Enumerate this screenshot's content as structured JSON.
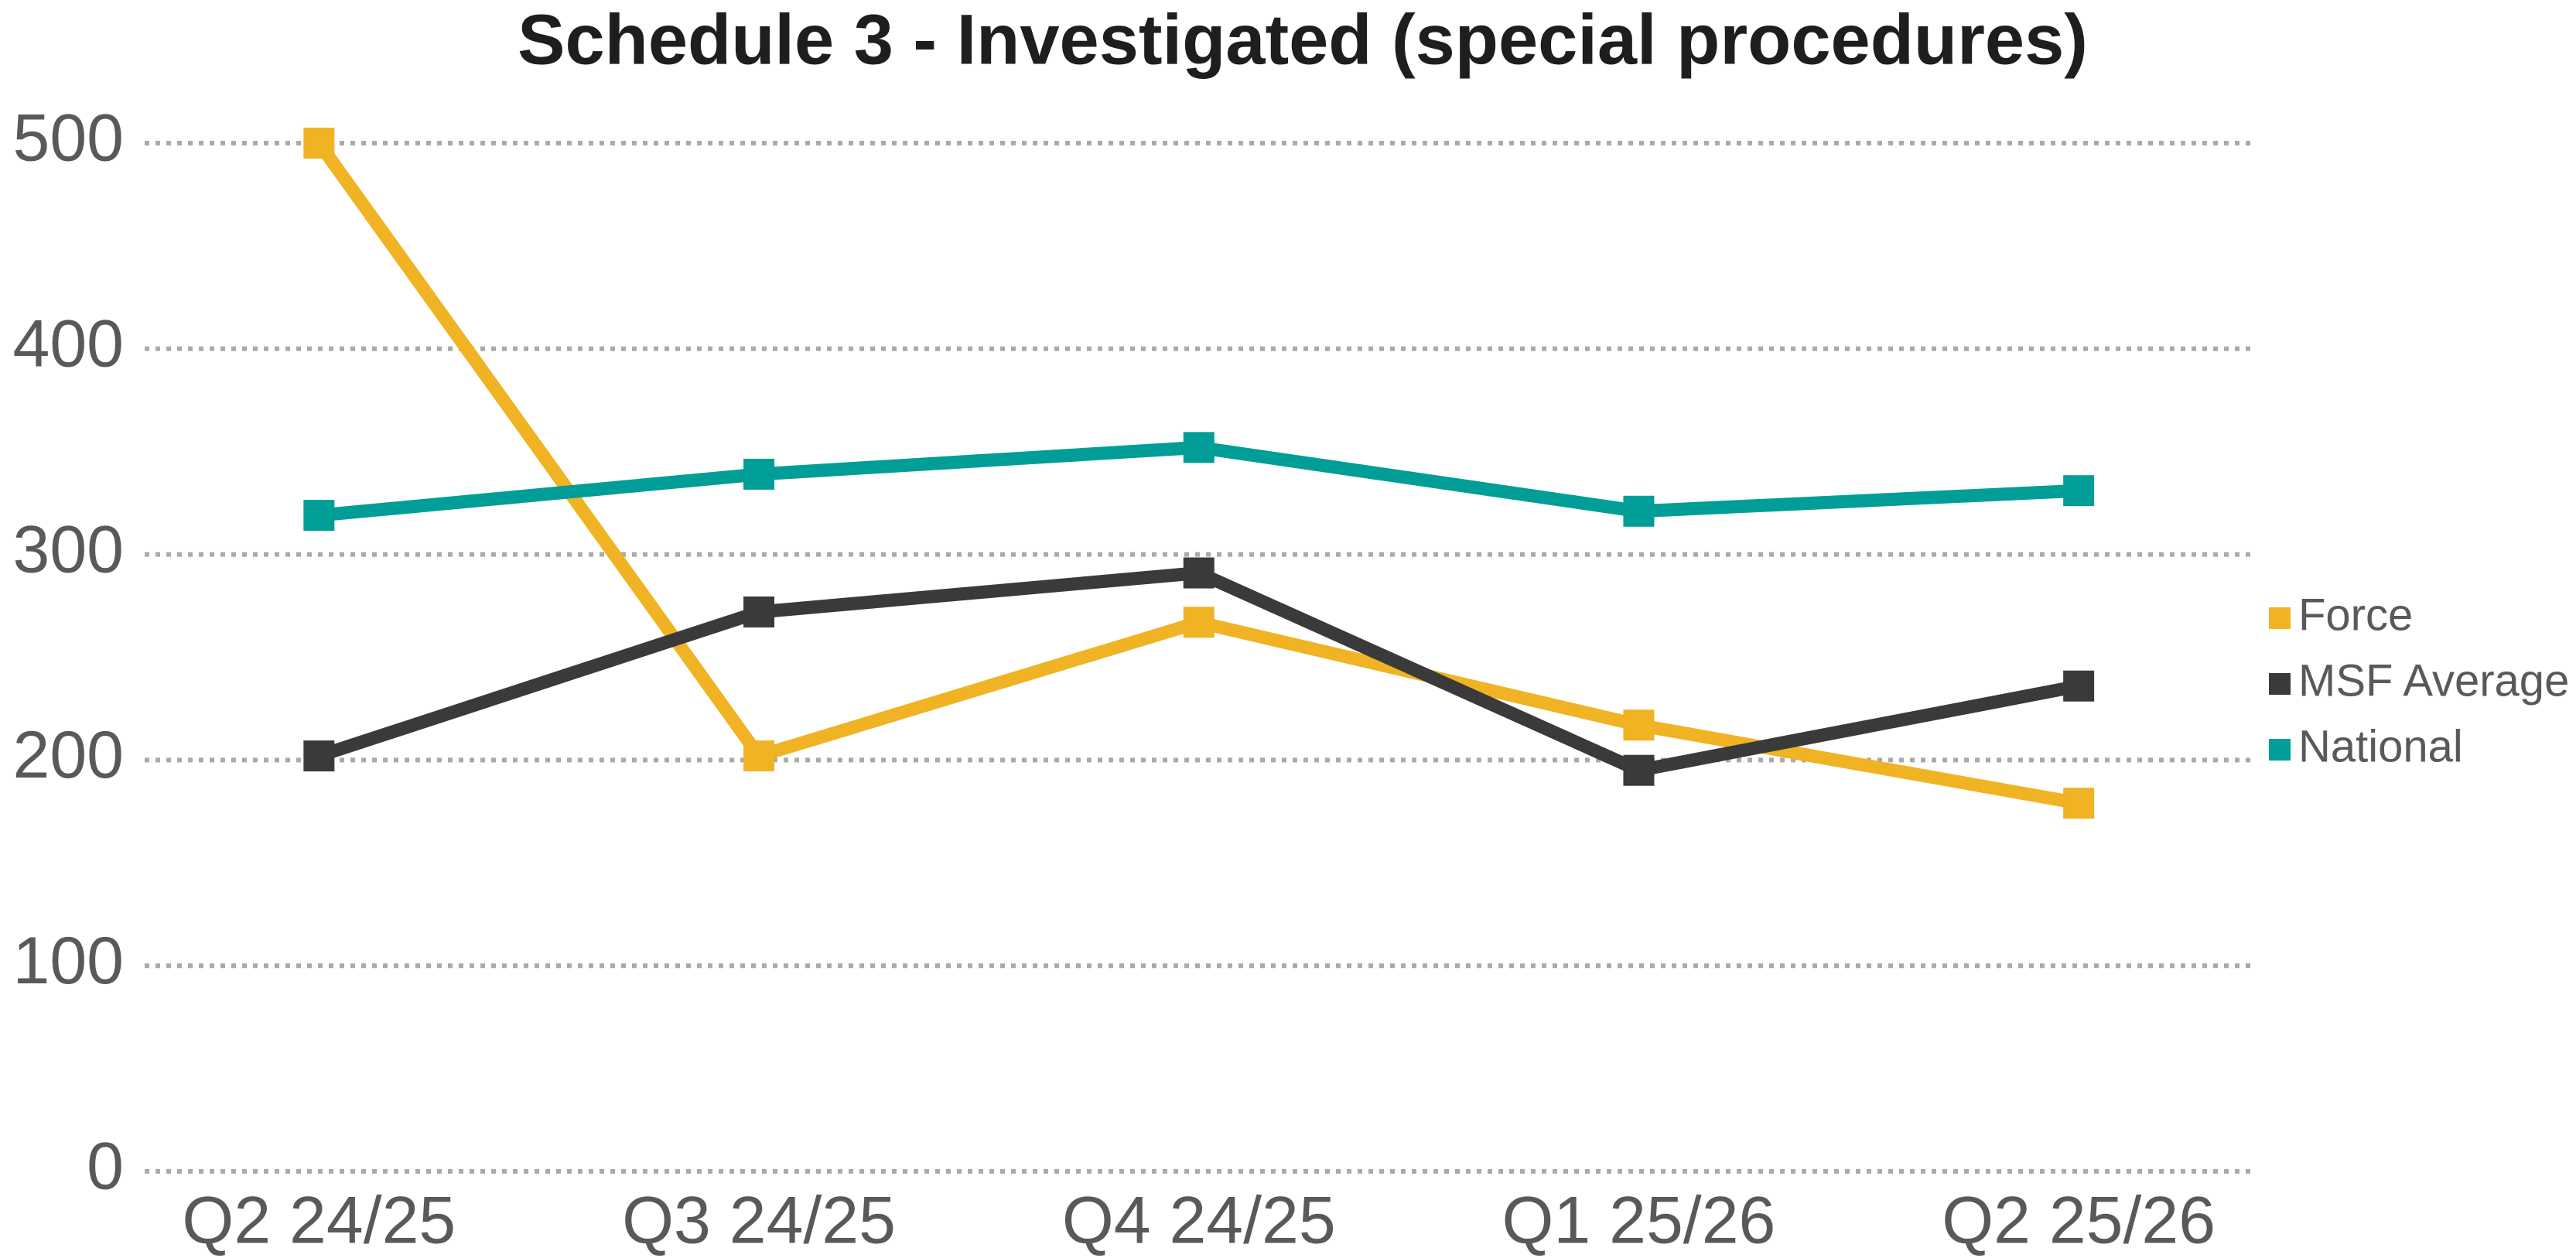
{
  "chart_data": {
    "type": "line",
    "title": "Schedule 3 - Investigated (special procedures)",
    "categories": [
      "Q2 24/25",
      "Q3 24/25",
      "Q4 24/25",
      "Q1 25/26",
      "Q2 25/26"
    ],
    "series": [
      {
        "name": "Force",
        "color": "#f0b323",
        "values": [
          500,
          202,
          267,
          217,
          179
        ]
      },
      {
        "name": "MSF Average",
        "color": "#3a3a3a",
        "values": [
          202,
          272,
          291,
          195,
          236
        ]
      },
      {
        "name": "National",
        "color": "#009e96",
        "values": [
          319,
          339,
          352,
          321,
          331
        ]
      }
    ],
    "ylim": [
      0,
      500
    ],
    "yticks": [
      0,
      100,
      200,
      300,
      400,
      500
    ],
    "grid": true,
    "legend": "right"
  }
}
